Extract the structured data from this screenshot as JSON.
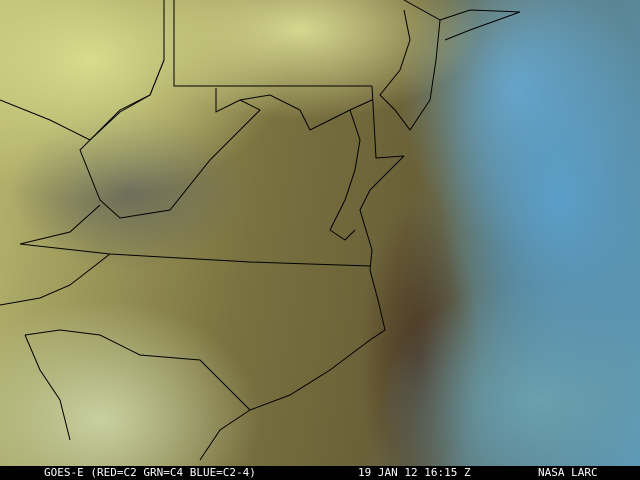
{
  "caption": {
    "satellite": "GOES-E (RED=C2 GRN=C4 BLUE=C2-4)",
    "datetime": "19 JAN 12 16:15 Z",
    "source": "NASA LARC"
  },
  "colors": {
    "border_lines": "#000000",
    "caption_bg": "#000000",
    "caption_text": "#ffffff"
  }
}
